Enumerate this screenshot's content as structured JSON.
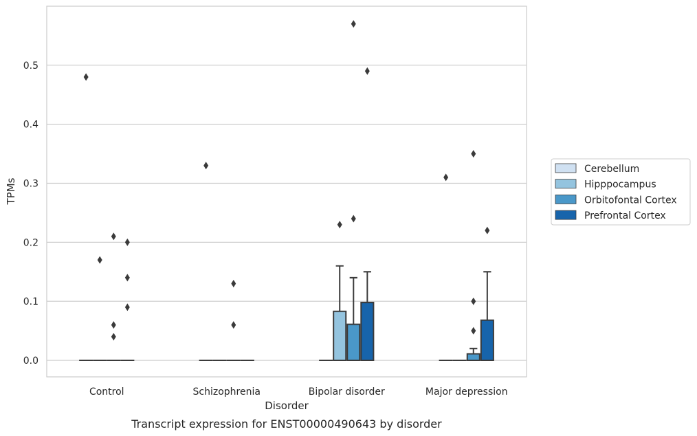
{
  "caption": "Transcript expression for ENST00000490643 by disorder",
  "colors": {
    "Cerebellum": "#d0e1f2",
    "Hipppocampus": "#94c4df",
    "Orbitofontal Cortex": "#4a98c9",
    "Prefrontal Cortex": "#1764ab",
    "edge": "#3a3a3a",
    "grid": "#cccccc",
    "frame": "#cccccc"
  },
  "chart_data": {
    "type": "box",
    "xlabel": "Disorder",
    "ylabel": "TPMs",
    "ylim": [
      -0.028,
      0.6
    ],
    "yticks": [
      "0.0",
      "0.1",
      "0.2",
      "0.3",
      "0.4",
      "0.5"
    ],
    "grid": "horizontal",
    "legend_position": "right",
    "categories": [
      "Control",
      "Schizophrenia",
      "Bipolar disorder",
      "Major depression"
    ],
    "series": [
      {
        "name": "Cerebellum",
        "boxes": [
          {
            "q1": 0,
            "median": 0,
            "q3": 0,
            "whisker_low": 0,
            "whisker_high": 0,
            "outliers": [
              0.48
            ]
          },
          {
            "q1": 0,
            "median": 0,
            "q3": 0,
            "whisker_low": 0,
            "whisker_high": 0,
            "outliers": [
              0.33
            ]
          },
          {
            "q1": 0,
            "median": 0,
            "q3": 0,
            "whisker_low": 0,
            "whisker_high": 0,
            "outliers": []
          },
          {
            "q1": 0,
            "median": 0,
            "q3": 0,
            "whisker_low": 0,
            "whisker_high": 0,
            "outliers": [
              0.31
            ]
          }
        ]
      },
      {
        "name": "Hipppocampus",
        "boxes": [
          {
            "q1": 0,
            "median": 0,
            "q3": 0,
            "whisker_low": 0,
            "whisker_high": 0,
            "outliers": [
              0.17
            ]
          },
          {
            "q1": 0,
            "median": 0,
            "q3": 0,
            "whisker_low": 0,
            "whisker_high": 0,
            "outliers": []
          },
          {
            "q1": 0,
            "median": 0,
            "q3": 0.083,
            "whisker_low": 0,
            "whisker_high": 0.16,
            "outliers": [
              0.23
            ]
          },
          {
            "q1": 0,
            "median": 0,
            "q3": 0,
            "whisker_low": 0,
            "whisker_high": 0,
            "outliers": []
          }
        ]
      },
      {
        "name": "Orbitofontal Cortex",
        "boxes": [
          {
            "q1": 0,
            "median": 0,
            "q3": 0,
            "whisker_low": 0,
            "whisker_high": 0,
            "outliers": [
              0.21,
              0.06,
              0.04
            ]
          },
          {
            "q1": 0,
            "median": 0,
            "q3": 0,
            "whisker_low": 0,
            "whisker_high": 0,
            "outliers": [
              0.13,
              0.06
            ]
          },
          {
            "q1": 0,
            "median": 0,
            "q3": 0.061,
            "whisker_low": 0,
            "whisker_high": 0.14,
            "outliers": [
              0.57,
              0.24
            ]
          },
          {
            "q1": 0,
            "median": 0,
            "q3": 0.011,
            "whisker_low": 0,
            "whisker_high": 0.02,
            "outliers": [
              0.35,
              0.1,
              0.05
            ]
          }
        ]
      },
      {
        "name": "Prefrontal Cortex",
        "boxes": [
          {
            "q1": 0,
            "median": 0,
            "q3": 0,
            "whisker_low": 0,
            "whisker_high": 0,
            "outliers": [
              0.2,
              0.14,
              0.09
            ]
          },
          {
            "q1": 0,
            "median": 0,
            "q3": 0,
            "whisker_low": 0,
            "whisker_high": 0,
            "outliers": []
          },
          {
            "q1": 0,
            "median": 0,
            "q3": 0.098,
            "whisker_low": 0,
            "whisker_high": 0.15,
            "outliers": [
              0.49
            ]
          },
          {
            "q1": 0,
            "median": 0,
            "q3": 0.068,
            "whisker_low": 0,
            "whisker_high": 0.15,
            "outliers": [
              0.22
            ]
          }
        ]
      }
    ]
  }
}
